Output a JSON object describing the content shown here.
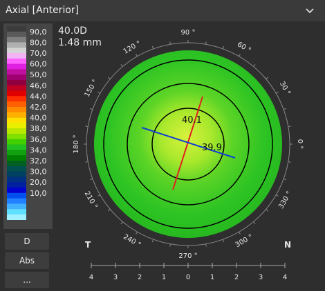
{
  "header": {
    "title": "Axial [Anterior]"
  },
  "legend": {
    "labels": [
      "90,0",
      "80,0",
      "70,0",
      "60,0",
      "50,0",
      "46,0",
      "44,0",
      "42,0",
      "40,0",
      "38,0",
      "36,0",
      "34,0",
      "32,0",
      "30,0",
      "20,0",
      "10,0"
    ]
  },
  "info": {
    "power": "40.0D",
    "diameter": "1.48 mm"
  },
  "map": {
    "angle_labels": [
      "0 °",
      "30 °",
      "60 °",
      "90 °",
      "120 °",
      "150 °",
      "180 °",
      "210 °",
      "240 °",
      "270 °",
      "300 °",
      "330 °"
    ],
    "steep_k": "40.1",
    "flat_k": "39.9",
    "left_side": "T",
    "right_side": "N"
  },
  "scale": {
    "ticks": [
      "4",
      "3",
      "2",
      "1",
      "0",
      "1",
      "2",
      "3",
      "4"
    ]
  },
  "buttons": [
    "D",
    "Abs",
    "..."
  ]
}
